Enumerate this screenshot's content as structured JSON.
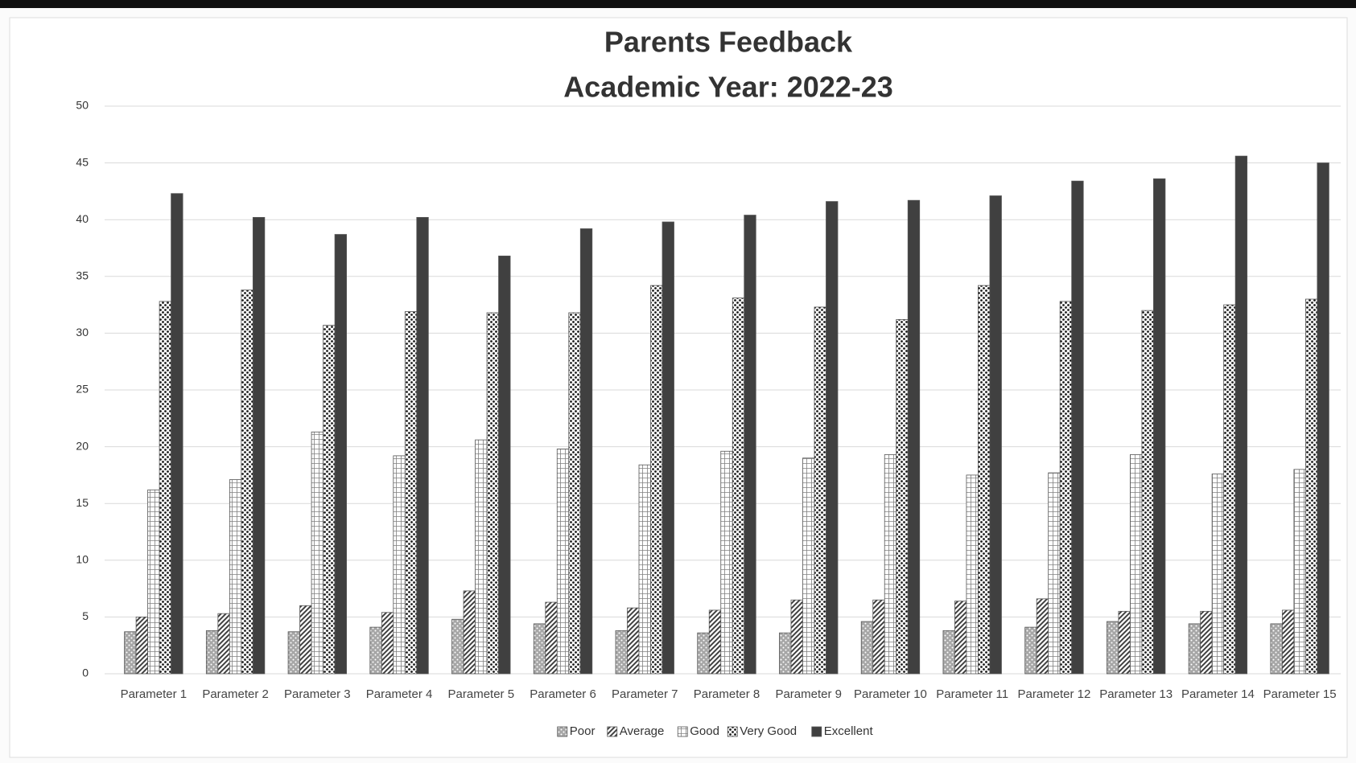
{
  "chart_data": {
    "type": "bar",
    "title": "Parents Feedback",
    "subtitle": "Academic Year: 2022-23",
    "categories": [
      "Parameter 1",
      "Parameter 2",
      "Parameter 3",
      "Parameter 4",
      "Parameter 5",
      "Parameter 6",
      "Parameter 7",
      "Parameter 8",
      "Parameter 9",
      "Parameter 10",
      "Parameter 11",
      "Parameter 12",
      "Parameter 13",
      "Parameter 14",
      "Parameter 15"
    ],
    "series": [
      {
        "name": "Poor",
        "color": "#a6a6a6",
        "pattern": "dots",
        "values": [
          3.7,
          3.8,
          3.7,
          4.1,
          4.8,
          4.4,
          3.8,
          3.6,
          3.6,
          4.6,
          3.8,
          4.1,
          4.6,
          4.4,
          4.4
        ]
      },
      {
        "name": "Average",
        "color": "#404040",
        "pattern": "diagonal",
        "values": [
          5,
          5.3,
          6,
          5.4,
          7.3,
          6.3,
          5.8,
          5.6,
          6.5,
          6.5,
          6.4,
          6.6,
          5.5,
          5.5,
          5.6
        ]
      },
      {
        "name": "Good",
        "color": "#808080",
        "pattern": "grid",
        "values": [
          16.2,
          17.1,
          21.3,
          19.2,
          20.6,
          19.8,
          18.4,
          19.6,
          19,
          19.3,
          17.5,
          17.7,
          19.3,
          17.6,
          18
        ]
      },
      {
        "name": "Very Good",
        "color": "#1a1a1a",
        "pattern": "checker",
        "values": [
          32.8,
          33.8,
          30.7,
          31.9,
          31.8,
          31.8,
          34.2,
          33.1,
          32.3,
          31.2,
          34.2,
          32.8,
          32,
          32.5,
          33
        ]
      },
      {
        "name": "Excellent",
        "color": "#404040",
        "pattern": "solid",
        "values": [
          42.3,
          40.2,
          38.7,
          40.2,
          36.8,
          39.2,
          39.8,
          40.4,
          41.6,
          41.7,
          42.1,
          43.4,
          43.6,
          45.6,
          45
        ]
      }
    ],
    "ylim": [
      0,
      50
    ],
    "yticks": [
      0,
      5,
      10,
      15,
      20,
      25,
      30,
      35,
      40,
      45,
      50
    ],
    "grid": true,
    "legend": "bottom"
  }
}
